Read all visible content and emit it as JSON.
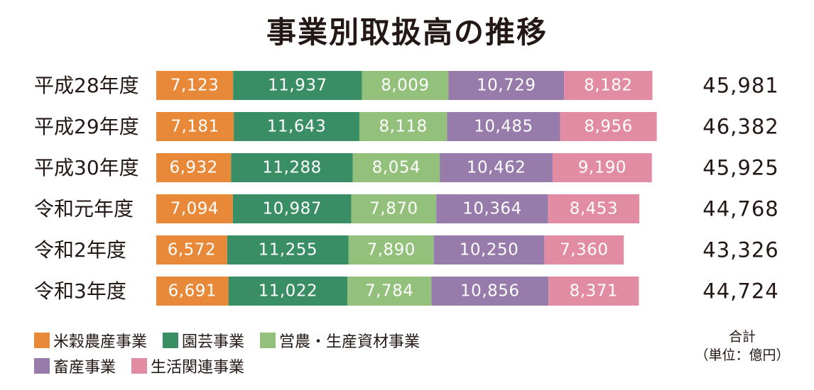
{
  "chart_data": {
    "type": "bar",
    "orientation": "horizontal",
    "stacked": true,
    "title": "事業別取扱高の推移",
    "categories": [
      "平成28年度",
      "平成29年度",
      "平成30年度",
      "令和元年度",
      "令和2年度",
      "令和3年度"
    ],
    "series": [
      {
        "name": "米穀農産事業",
        "color": "#e8893a",
        "values": [
          7123,
          7181,
          6932,
          7094,
          6572,
          6691
        ],
        "labels": [
          "7,123",
          "7,181",
          "6,932",
          "7,094",
          "6,572",
          "6,691"
        ]
      },
      {
        "name": "園芸事業",
        "color": "#3a8e66",
        "values": [
          11937,
          11643,
          11288,
          10987,
          11255,
          11022
        ],
        "labels": [
          "11,937",
          "11,643",
          "11,288",
          "10,987",
          "11,255",
          "11,022"
        ]
      },
      {
        "name": "営農・生産資材事業",
        "color": "#93c07a",
        "values": [
          8009,
          8118,
          8054,
          7870,
          7890,
          7784
        ],
        "labels": [
          "8,009",
          "8,118",
          "8,054",
          "7,870",
          "7,890",
          "7,784"
        ]
      },
      {
        "name": "畜産事業",
        "color": "#967bab",
        "values": [
          10729,
          10485,
          10462,
          10364,
          10250,
          10856
        ],
        "labels": [
          "10,729",
          "10,485",
          "10,462",
          "10,364",
          "10,250",
          "10,856"
        ]
      },
      {
        "name": "生活関連事業",
        "color": "#e28ca4",
        "values": [
          8182,
          8956,
          9190,
          8453,
          7360,
          8371
        ],
        "labels": [
          "8,182",
          "8,956",
          "9,190",
          "8,453",
          "7,360",
          "8,371"
        ]
      }
    ],
    "totals": [
      45981,
      46382,
      45925,
      44768,
      43326,
      44724
    ],
    "total_labels": [
      "45,981",
      "46,382",
      "45,925",
      "44,768",
      "43,326",
      "44,724"
    ],
    "xlim": [
      0,
      47000
    ],
    "grid": false,
    "legend_position": "bottom-left"
  },
  "unit_note": {
    "line1": "合計",
    "line2": "（単位：億円）"
  }
}
